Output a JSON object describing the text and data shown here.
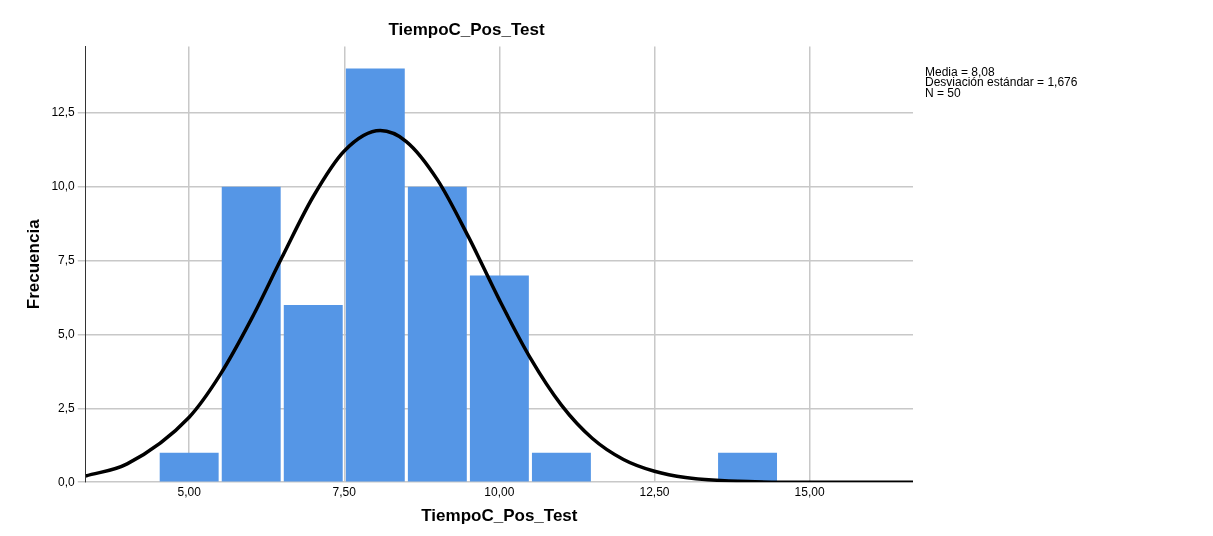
{
  "chart_data": {
    "type": "histogram",
    "title": "TiempoC_Pos_Test",
    "xlabel": "TiempoC_Pos_Test",
    "ylabel": "Frecuencia",
    "bins": [
      4.5,
      5.5,
      6.5,
      7.5,
      8.5,
      9.5,
      10.5,
      11.5,
      12.5,
      13.5,
      14.5
    ],
    "values": [
      1,
      10,
      6,
      14,
      10,
      7,
      1,
      0,
      0,
      1
    ],
    "color": "#5596e6",
    "series": [
      {
        "type": "line",
        "color": "#000000",
        "x": [
          3.333,
          4,
          5,
          5.5,
          6,
          6.5,
          7,
          7.5,
          8.08,
          8.5,
          9,
          9.5,
          10,
          10.5,
          11,
          11.5,
          12,
          12.5,
          13,
          14,
          15,
          16.667
        ],
        "values": [
          0.21,
          0.62,
          2.2,
          3.64,
          5.51,
          7.63,
          9.67,
          11.21,
          11.9,
          11.53,
          10.24,
          8.31,
          6.17,
          4.2,
          2.61,
          1.48,
          0.77,
          0.37,
          0.16,
          0.02,
          0,
          0
        ]
      }
    ],
    "xlim": [
      3.333,
      16.667
    ],
    "xticks": [
      {
        "value": 5,
        "label": "5,00"
      },
      {
        "value": 7.5,
        "label": "7,50"
      },
      {
        "value": 10,
        "label": "10,00"
      },
      {
        "value": 12.5,
        "label": "12,50"
      },
      {
        "value": 15,
        "label": "15,00"
      }
    ],
    "ylim": [
      0,
      14.75
    ],
    "yticks": [
      {
        "value": 0,
        "label": "0,0"
      },
      {
        "value": 2.5,
        "label": "2,5"
      },
      {
        "value": 5,
        "label": "5,0"
      },
      {
        "value": 7.5,
        "label": "7,5"
      },
      {
        "value": 10,
        "label": "10,0"
      },
      {
        "value": 12.5,
        "label": "12,5"
      }
    ],
    "grid": true,
    "marker": "none",
    "annotations": [
      "Media = 8,08",
      "Desviación estándar = 1,676",
      "N = 50"
    ]
  }
}
